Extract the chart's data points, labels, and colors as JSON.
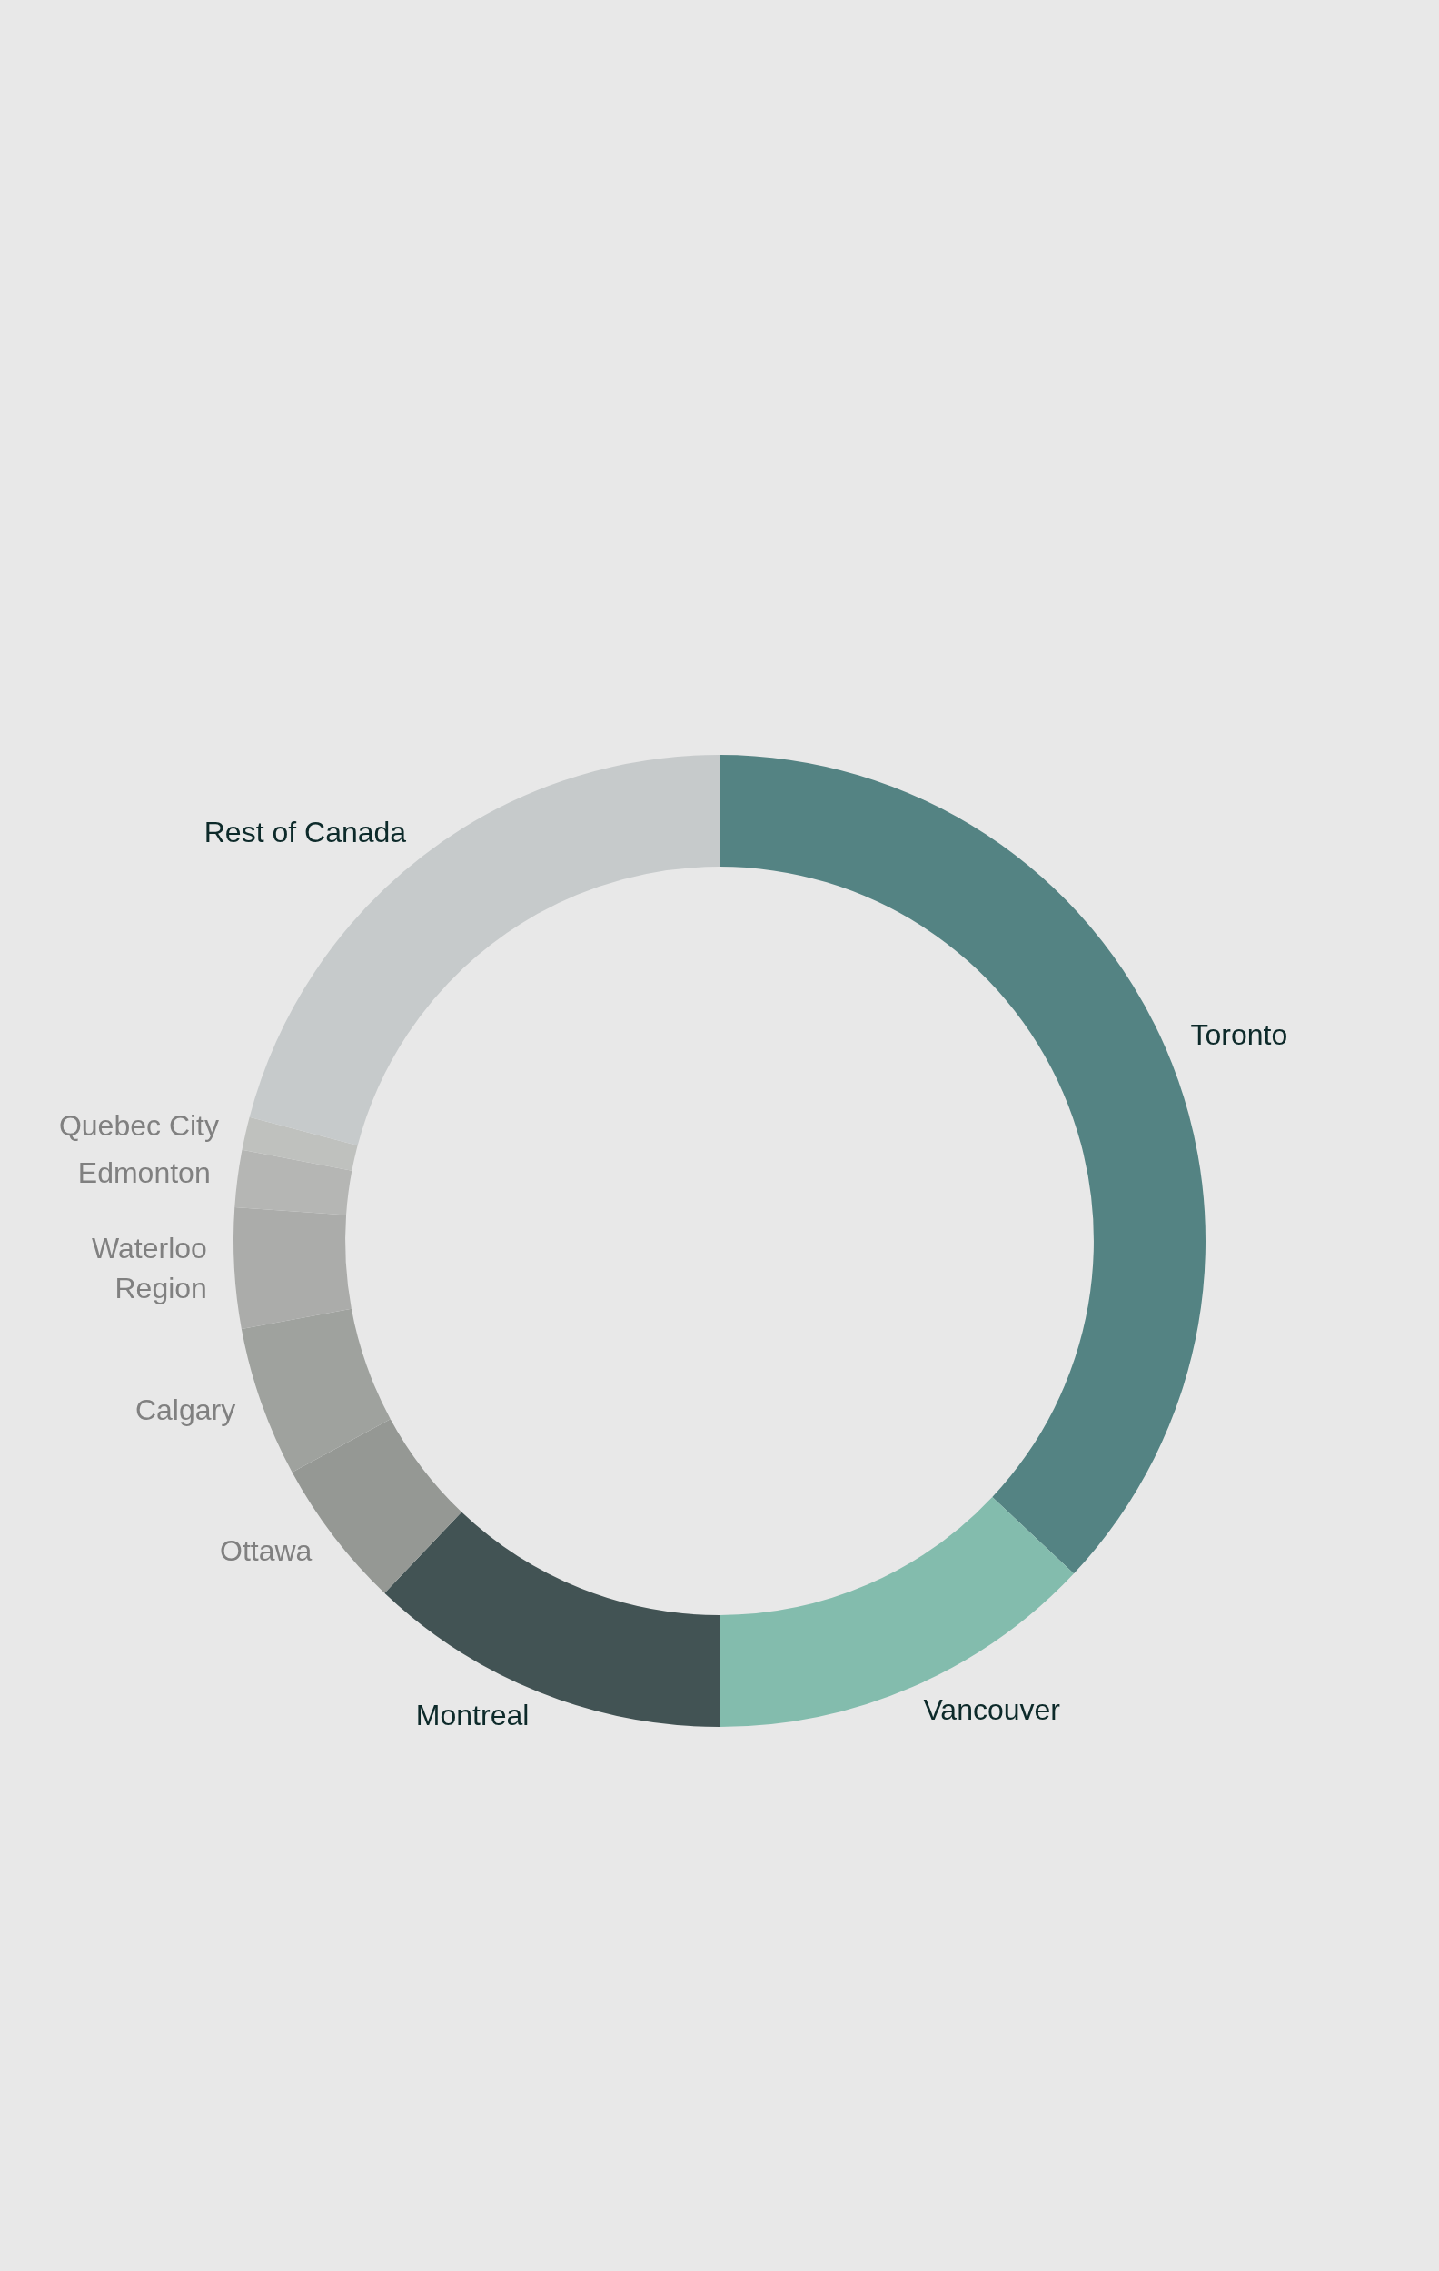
{
  "chart_data": {
    "type": "donut",
    "categories": [
      "Toronto",
      "Vancouver",
      "Montreal",
      "Ottawa",
      "Calgary",
      "Waterloo Region",
      "Edmonton",
      "Quebec City",
      "Rest of Canada"
    ],
    "values": [
      37,
      13,
      12.1,
      5,
      5,
      4,
      1.9,
      1.1,
      20.9
    ],
    "colors": [
      "#548383",
      "#83bcad",
      "#425354",
      "#959894",
      "#9fa29e",
      "#abacaa",
      "#b5b6b4",
      "#bfc1be",
      "#c6cacb"
    ],
    "legend": false
  }
}
